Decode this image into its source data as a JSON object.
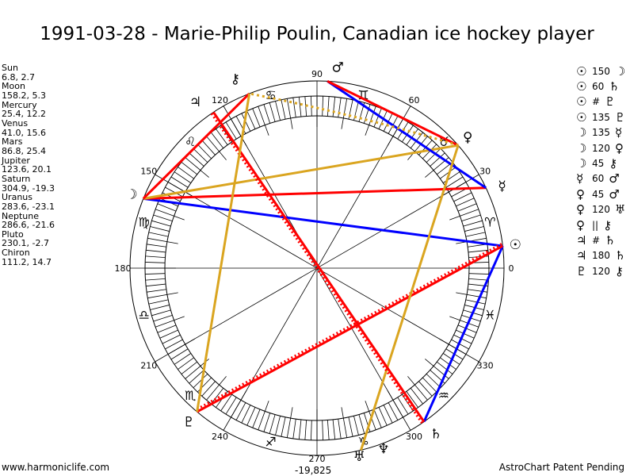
{
  "title": "1991-03-28 - Marie-Philip Poulin, Canadian ice hockey player",
  "planets": [
    {
      "name": "Sun",
      "glyph": "☉",
      "coords": "6.8, 2.7",
      "lon": 6.8
    },
    {
      "name": "Moon",
      "glyph": "☽",
      "coords": "158.2, 5.3",
      "lon": 158.2
    },
    {
      "name": "Mercury",
      "glyph": "☿",
      "coords": "25.4, 12.2",
      "lon": 25.4
    },
    {
      "name": "Venus",
      "glyph": "♀",
      "coords": "41.0, 15.6",
      "lon": 41.0
    },
    {
      "name": "Mars",
      "glyph": "♂",
      "coords": "86.8, 25.4",
      "lon": 86.8
    },
    {
      "name": "Jupiter",
      "glyph": "♃",
      "coords": "123.6, 20.1",
      "lon": 123.6
    },
    {
      "name": "Saturn",
      "glyph": "♄",
      "coords": "304.9, -19.3",
      "lon": 304.9
    },
    {
      "name": "Uranus",
      "glyph": "♅",
      "coords": "283.6, -23.1",
      "lon": 283.6
    },
    {
      "name": "Neptune",
      "glyph": "♆",
      "coords": "286.6, -21.6",
      "lon": 286.6
    },
    {
      "name": "Pluto",
      "glyph": "♇",
      "coords": "230.1, -2.7",
      "lon": 230.1
    },
    {
      "name": "Chiron",
      "glyph": "⚷",
      "coords": "111.2, 14.7",
      "lon": 111.2
    }
  ],
  "signs": [
    "♈",
    "♉",
    "♊",
    "♋",
    "♌",
    "♍",
    "♎",
    "♏",
    "♐",
    "♑",
    "♒",
    "♓"
  ],
  "degree_labels": [
    "0",
    "30",
    "60",
    "90",
    "120",
    "150",
    "180",
    "210",
    "240",
    "270",
    "300",
    "330"
  ],
  "aspects": [
    {
      "p1": "Sun",
      "g1": "☉",
      "label": "150",
      "p2": "Moon",
      "g2": "☽",
      "color": "#0000ff",
      "style": "solid"
    },
    {
      "p1": "Sun",
      "g1": "☉",
      "label": "60",
      "p2": "Saturn",
      "g2": "♄",
      "color": "#0000ff",
      "style": "solid"
    },
    {
      "p1": "Sun",
      "g1": "☉",
      "label": "#",
      "p2": "Pluto",
      "g2": "♇",
      "color": "#ff0000",
      "style": "dotted"
    },
    {
      "p1": "Sun",
      "g1": "☉",
      "label": "135",
      "p2": "Pluto",
      "g2": "♇",
      "color": "#ff0000",
      "style": "solid"
    },
    {
      "p1": "Moon",
      "g1": "☽",
      "label": "135",
      "p2": "Mercury",
      "g2": "☿",
      "color": "#ff0000",
      "style": "solid"
    },
    {
      "p1": "Moon",
      "g1": "☽",
      "label": "120",
      "p2": "Venus",
      "g2": "♀",
      "color": "#daa520",
      "style": "solid"
    },
    {
      "p1": "Moon",
      "g1": "☽",
      "label": "45",
      "p2": "Chiron",
      "g2": "⚷",
      "color": "#ff0000",
      "style": "solid"
    },
    {
      "p1": "Mercury",
      "g1": "☿",
      "label": "60",
      "p2": "Mars",
      "g2": "♂",
      "color": "#0000ff",
      "style": "solid"
    },
    {
      "p1": "Venus",
      "g1": "♀",
      "label": "45",
      "p2": "Mars",
      "g2": "♂",
      "color": "#ff0000",
      "style": "solid"
    },
    {
      "p1": "Venus",
      "g1": "♀",
      "label": "120",
      "p2": "Uranus",
      "g2": "♅",
      "color": "#daa520",
      "style": "solid"
    },
    {
      "p1": "Venus",
      "g1": "♀",
      "label": "||",
      "p2": "Chiron",
      "g2": "⚷",
      "color": "#daa520",
      "style": "curve"
    },
    {
      "p1": "Jupiter",
      "g1": "♃",
      "label": "#",
      "p2": "Saturn",
      "g2": "♄",
      "color": "#ff0000",
      "style": "dotted"
    },
    {
      "p1": "Jupiter",
      "g1": "♃",
      "label": "180",
      "p2": "Saturn",
      "g2": "♄",
      "color": "#ff0000",
      "style": "solid"
    },
    {
      "p1": "Pluto",
      "g1": "♇",
      "label": "120",
      "p2": "Chiron",
      "g2": "⚷",
      "color": "#daa520",
      "style": "solid"
    }
  ],
  "center_value": "-19,825",
  "footer_left": "www.harmoniclife.com",
  "footer_right": "AstroChart Patent Pending"
}
